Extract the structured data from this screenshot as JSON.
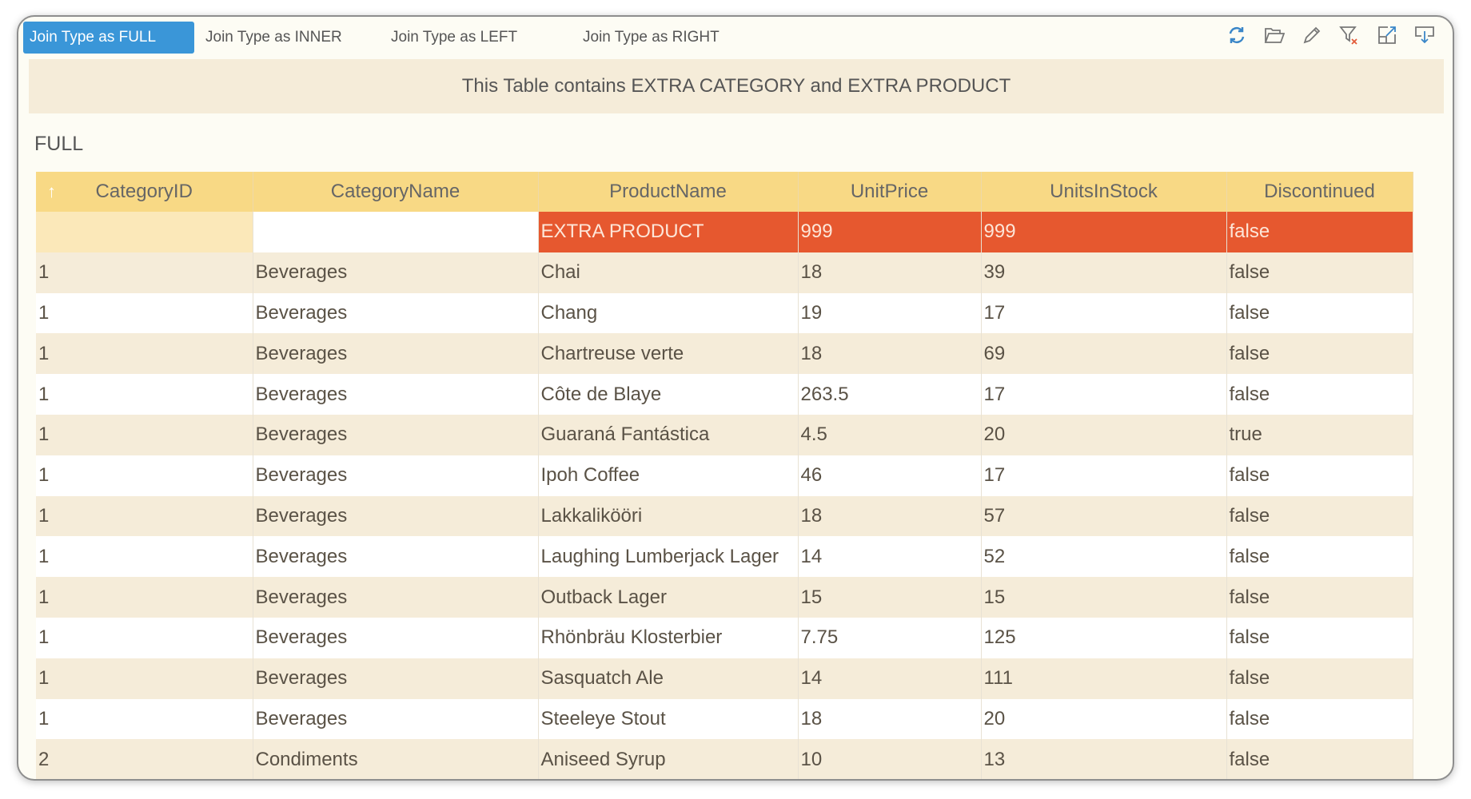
{
  "tabs": [
    {
      "label": "Join Type as FULL",
      "active": true
    },
    {
      "label": "Join Type as INNER"
    },
    {
      "label": "Join Type as LEFT"
    },
    {
      "label": "Join Type as RIGHT"
    }
  ],
  "toolbar": [
    "refresh-icon",
    "open-folder-icon",
    "edit-icon",
    "clear-filter-icon",
    "export-icon",
    "download-icon"
  ],
  "banner": "This Table contains EXTRA CATEGORY and EXTRA PRODUCT",
  "subtitle": "FULL",
  "colors": {
    "accent": "#3a96d8",
    "header": "#f8d985",
    "highlight": "#e6582f"
  },
  "columns": [
    "CategoryID",
    "CategoryName",
    "ProductName",
    "UnitPrice",
    "UnitsInStock",
    "Discontinued"
  ],
  "rows": [
    [
      "",
      "",
      "EXTRA PRODUCT",
      "999",
      "999",
      "false"
    ],
    [
      "1",
      "Beverages",
      "Chai",
      "18",
      "39",
      "false"
    ],
    [
      "1",
      "Beverages",
      "Chang",
      "19",
      "17",
      "false"
    ],
    [
      "1",
      "Beverages",
      "Chartreuse verte",
      "18",
      "69",
      "false"
    ],
    [
      "1",
      "Beverages",
      "Côte de Blaye",
      "263.5",
      "17",
      "false"
    ],
    [
      "1",
      "Beverages",
      "Guaraná Fantástica",
      "4.5",
      "20",
      "true"
    ],
    [
      "1",
      "Beverages",
      "Ipoh Coffee",
      "46",
      "17",
      "false"
    ],
    [
      "1",
      "Beverages",
      "Lakkalikööri",
      "18",
      "57",
      "false"
    ],
    [
      "1",
      "Beverages",
      "Laughing Lumberjack Lager",
      "14",
      "52",
      "false"
    ],
    [
      "1",
      "Beverages",
      "Outback Lager",
      "15",
      "15",
      "false"
    ],
    [
      "1",
      "Beverages",
      "Rhönbräu Klosterbier",
      "7.75",
      "125",
      "false"
    ],
    [
      "1",
      "Beverages",
      "Sasquatch Ale",
      "14",
      "111",
      "false"
    ],
    [
      "1",
      "Beverages",
      "Steeleye Stout",
      "18",
      "20",
      "false"
    ],
    [
      "2",
      "Condiments",
      "Aniseed Syrup",
      "10",
      "13",
      "false"
    ]
  ]
}
